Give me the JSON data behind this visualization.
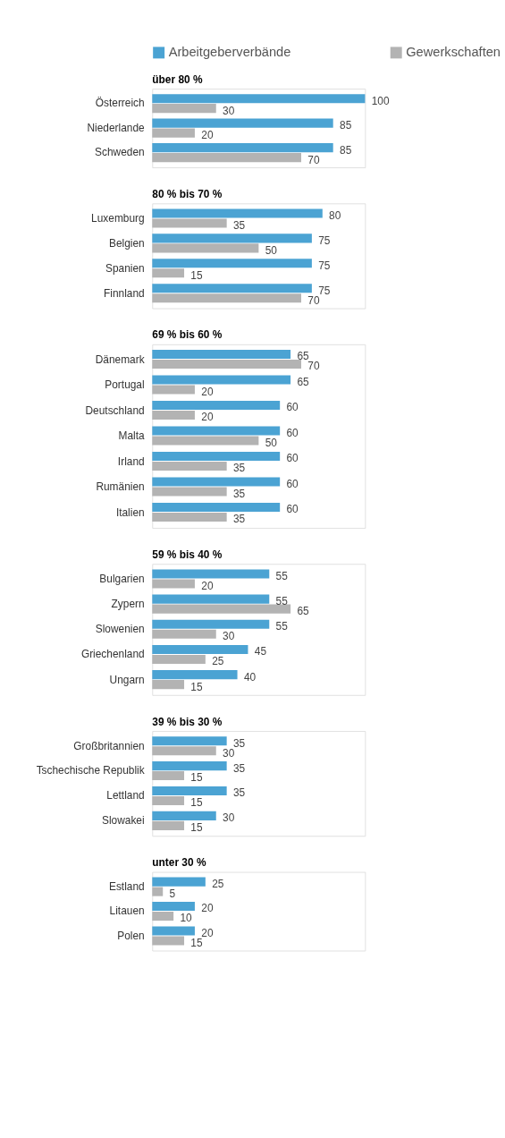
{
  "chart_data": [
    {
      "type": "bar",
      "orientation": "horizontal",
      "title": "über 80 %",
      "legend": "top",
      "data_labels": true,
      "categories": [
        "Österreich",
        "Niederlande",
        "Schweden"
      ],
      "series": [
        {
          "name": "Arbeitgeberverbände",
          "color": "#4ba3d3",
          "values": [
            100,
            85,
            85
          ]
        },
        {
          "name": "Gewerkschaften",
          "color": "#b3b3b3",
          "values": [
            30,
            20,
            70
          ]
        }
      ]
    },
    {
      "type": "bar",
      "orientation": "horizontal",
      "title": "80 % bis 70 %",
      "data_labels": true,
      "categories": [
        "Luxemburg",
        "Belgien",
        "Spanien",
        "Finnland"
      ],
      "series": [
        {
          "name": "Arbeitgeberverbände",
          "color": "#4ba3d3",
          "values": [
            80,
            75,
            75,
            75
          ]
        },
        {
          "name": "Gewerkschaften",
          "color": "#b3b3b3",
          "values": [
            35,
            50,
            15,
            70
          ]
        }
      ]
    },
    {
      "type": "bar",
      "orientation": "horizontal",
      "title": "69 % bis 60 %",
      "data_labels": true,
      "categories": [
        "Dänemark",
        "Portugal",
        "Deutschland",
        "Malta",
        "Irland",
        "Rumänien",
        "Italien"
      ],
      "series": [
        {
          "name": "Arbeitgeberverbände",
          "color": "#4ba3d3",
          "values": [
            65,
            65,
            60,
            60,
            60,
            60,
            60
          ]
        },
        {
          "name": "Gewerkschaften",
          "color": "#b3b3b3",
          "values": [
            70,
            20,
            20,
            50,
            35,
            35,
            35
          ]
        }
      ]
    },
    {
      "type": "bar",
      "orientation": "horizontal",
      "title": "59 % bis 40 %",
      "data_labels": true,
      "categories": [
        "Bulgarien",
        "Zypern",
        "Slowenien",
        "Griechenland",
        "Ungarn"
      ],
      "series": [
        {
          "name": "Arbeitgeberverbände",
          "color": "#4ba3d3",
          "values": [
            55,
            55,
            55,
            45,
            40
          ]
        },
        {
          "name": "Gewerkschaften",
          "color": "#b3b3b3",
          "values": [
            20,
            65,
            30,
            25,
            15
          ]
        }
      ]
    },
    {
      "type": "bar",
      "orientation": "horizontal",
      "title": "39 % bis 30 %",
      "data_labels": true,
      "categories": [
        "Großbritannien",
        "Tschechische Republik",
        "Lettland",
        "Slowakei"
      ],
      "series": [
        {
          "name": "Arbeitgeberverbände",
          "color": "#4ba3d3",
          "values": [
            35,
            35,
            35,
            30
          ]
        },
        {
          "name": "Gewerkschaften",
          "color": "#b3b3b3",
          "values": [
            30,
            15,
            15,
            15
          ]
        }
      ]
    },
    {
      "type": "bar",
      "orientation": "horizontal",
      "title": "unter 30 %",
      "data_labels": true,
      "categories": [
        "Estland",
        "Litauen",
        "Polen"
      ],
      "series": [
        {
          "name": "Arbeitgeberverbände",
          "color": "#4ba3d3",
          "values": [
            25,
            20,
            20
          ]
        },
        {
          "name": "Gewerkschaften",
          "color": "#b3b3b3",
          "values": [
            5,
            10,
            15
          ]
        }
      ]
    }
  ]
}
